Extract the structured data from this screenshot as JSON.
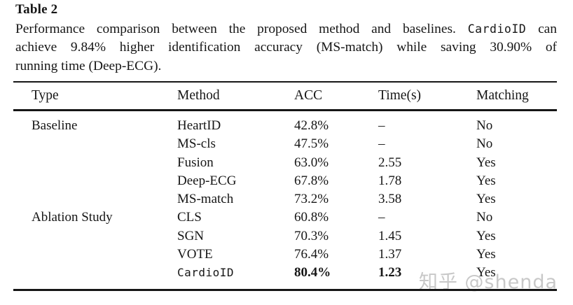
{
  "page": {
    "title": "Table 2"
  },
  "caption": {
    "line1_pre": "Performance comparison between the proposed method and baselines.",
    "line1_mono": "CardioID",
    "line1_post": "can",
    "line2": "achieve 9.84% higher identification accuracy (MS-match) while saving 30.90% of",
    "line3": "running time (Deep-ECG)."
  },
  "table": {
    "headers": [
      "Type",
      "Method",
      "ACC",
      "Time(s)",
      "Matching"
    ],
    "rows": [
      {
        "type": "Baseline",
        "method": "HeartID",
        "acc": "42.8%",
        "time": "–",
        "matching": "No"
      },
      {
        "type": "",
        "method": "MS-cls",
        "acc": "47.5%",
        "time": "–",
        "matching": "No"
      },
      {
        "type": "",
        "method": "Fusion",
        "acc": "63.0%",
        "time": "2.55",
        "matching": "Yes"
      },
      {
        "type": "",
        "method": "Deep-ECG",
        "acc": "67.8%",
        "time": "1.78",
        "matching": "Yes"
      },
      {
        "type": "",
        "method": "MS-match",
        "acc": "73.2%",
        "time": "3.58",
        "matching": "Yes"
      },
      {
        "type": "Ablation Study",
        "method": "CLS",
        "acc": "60.8%",
        "time": "–",
        "matching": "No"
      },
      {
        "type": "",
        "method": "SGN",
        "acc": "70.3%",
        "time": "1.45",
        "matching": "Yes"
      },
      {
        "type": "",
        "method": "VOTE",
        "acc": "76.4%",
        "time": "1.37",
        "matching": "Yes"
      },
      {
        "type": "",
        "method": "CardioID",
        "acc": "80.4%",
        "time": "1.23",
        "matching": "Yes"
      }
    ]
  },
  "watermark": {
    "text": "知乎 @shenda",
    "color": "#c8c8c8"
  },
  "colors": {
    "background": "#ffffff",
    "text": "#161616",
    "rule": "#161616"
  }
}
